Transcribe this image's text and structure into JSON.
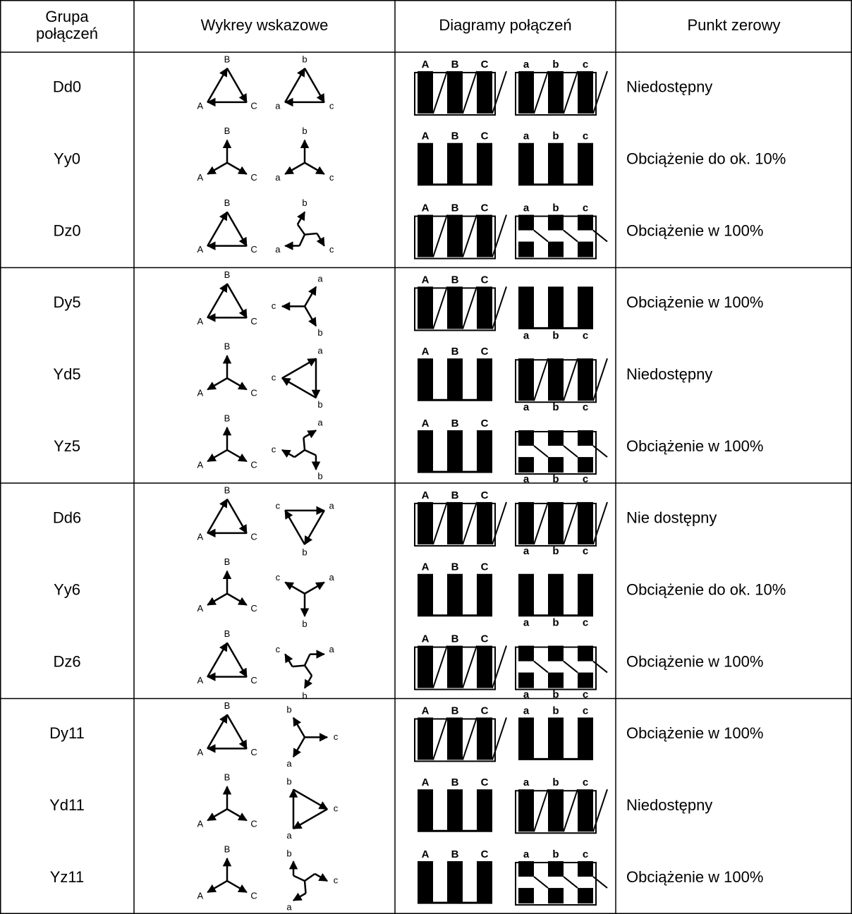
{
  "table": {
    "headers": [
      [
        "Grupa",
        "połączeń"
      ],
      [
        "Wykrey wskazowe"
      ],
      [
        "Diagramy połączeń"
      ],
      [
        "Punkt zerowy"
      ]
    ],
    "labels": {
      "hv": [
        "A",
        "B",
        "C"
      ],
      "lv": [
        "a",
        "b",
        "c"
      ]
    },
    "rows": [
      {
        "group": "Dd0",
        "zero": "Niedostępny"
      },
      {
        "group": "Yy0",
        "zero": "Obciążenie do ok. 10%"
      },
      {
        "group": "Dz0",
        "zero": "Obciążenie w 100%"
      },
      {
        "group": "Dy5",
        "zero": "Obciążenie w 100%"
      },
      {
        "group": "Yd5",
        "zero": "Niedostępny"
      },
      {
        "group": "Yz5",
        "zero": "Obciążenie w 100%"
      },
      {
        "group": "Dd6",
        "zero": "Nie dostępny"
      },
      {
        "group": "Yy6",
        "zero": "Obciążenie do ok. 10%"
      },
      {
        "group": "Dz6",
        "zero": "Obciążenie w 100%"
      },
      {
        "group": "Dy11",
        "zero": "Obciążenie w 100%"
      },
      {
        "group": "Yd11",
        "zero": "Niedostępny"
      },
      {
        "group": "Yz11",
        "zero": "Obciążenie w 100%"
      }
    ]
  }
}
